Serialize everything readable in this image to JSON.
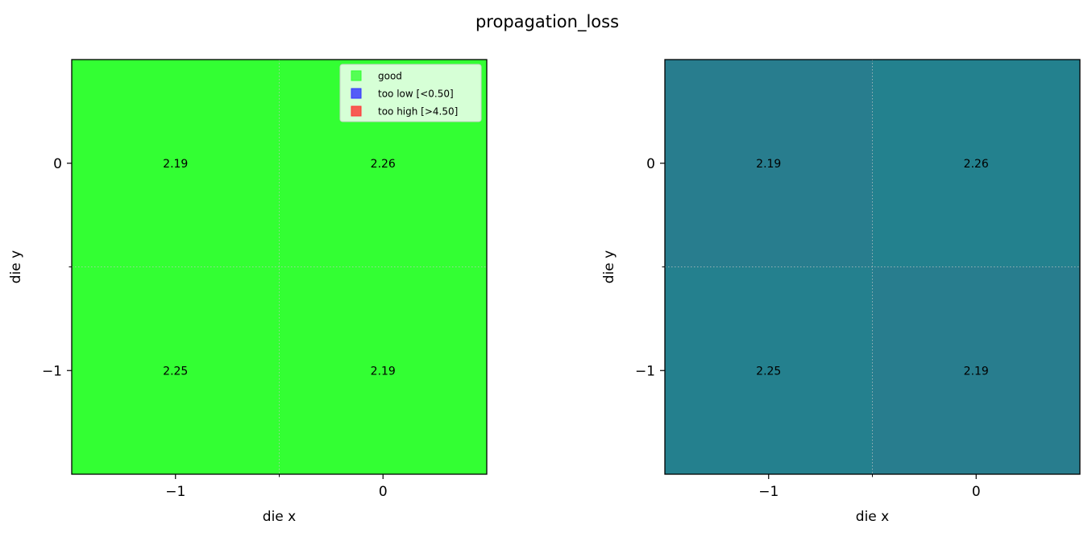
{
  "title": "propagation_loss",
  "chart_data": [
    {
      "type": "heatmap",
      "xlabel": "die x",
      "ylabel": "die y",
      "x_ticks": [
        -1,
        0
      ],
      "y_ticks": [
        0,
        -1
      ],
      "x_tick_labels": [
        "−1",
        "0"
      ],
      "y_tick_labels": [
        "0",
        "−1"
      ],
      "xlim": [
        -1.5,
        0.5
      ],
      "ylim": [
        -1.5,
        0.5
      ],
      "cells": [
        {
          "x": -1,
          "y": 0,
          "value": 2.19,
          "label": "2.19",
          "color": "#33ff33"
        },
        {
          "x": 0,
          "y": 0,
          "value": 2.26,
          "label": "2.26",
          "color": "#33ff33"
        },
        {
          "x": -1,
          "y": -1,
          "value": 2.25,
          "label": "2.25",
          "color": "#33ff33"
        },
        {
          "x": 0,
          "y": -1,
          "value": 2.19,
          "label": "2.19",
          "color": "#33ff33"
        }
      ],
      "grid": true,
      "grid_color": "#c8c8c8",
      "legend": {
        "placement": "top-right",
        "items": [
          {
            "label": "good",
            "color": "#33ff33"
          },
          {
            "label": "too low [<0.50]",
            "color": "#3333ff"
          },
          {
            "label": "too high [>4.50]",
            "color": "#ff3333"
          }
        ]
      }
    },
    {
      "type": "heatmap",
      "xlabel": "die x",
      "ylabel": "die y",
      "x_ticks": [
        -1,
        0
      ],
      "y_ticks": [
        0,
        -1
      ],
      "x_tick_labels": [
        "−1",
        "0"
      ],
      "y_tick_labels": [
        "0",
        "−1"
      ],
      "xlim": [
        -1.5,
        0.5
      ],
      "ylim": [
        -1.5,
        0.5
      ],
      "cells": [
        {
          "x": -1,
          "y": 0,
          "value": 2.19,
          "label": "2.19",
          "color": "#287d8e"
        },
        {
          "x": 0,
          "y": 0,
          "value": 2.26,
          "label": "2.26",
          "color": "#23818e"
        },
        {
          "x": -1,
          "y": -1,
          "value": 2.25,
          "label": "2.25",
          "color": "#24808e"
        },
        {
          "x": 0,
          "y": -1,
          "value": 2.19,
          "label": "2.19",
          "color": "#287d8e"
        }
      ],
      "grid": true,
      "grid_color": "#c8c8c8"
    }
  ]
}
